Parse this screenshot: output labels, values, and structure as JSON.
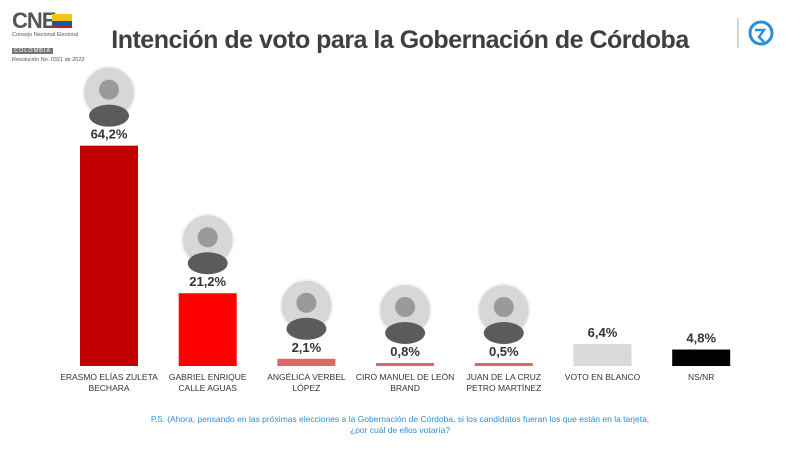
{
  "logo": {
    "mark": "CNE",
    "line1": "Consejo Nacional Electoral",
    "line2": "COLOMBIA",
    "line3": "Resolución No. 0321 de 2023"
  },
  "icons": {
    "corner": "brand-logo-icon",
    "photo": "candidate-photo-icon"
  },
  "chart_data": {
    "type": "bar",
    "title": "Intención de voto para la Gobernación de Córdoba",
    "categories": [
      [
        "ERASMO ELÍAS ZULETA",
        "BECHARA"
      ],
      [
        "GABRIEL ENRIQUE",
        "CALLE AGUAS"
      ],
      [
        "ANGÉLICA VERBEL",
        "LÓPEZ"
      ],
      [
        "CIRO MANUEL DE LEÓN",
        "BRAND"
      ],
      [
        "JUAN DE LA CRUZ",
        "PETRO MARTÍNEZ"
      ],
      [
        "VOTO EN BLANCO"
      ],
      [
        "NS/NR"
      ]
    ],
    "values": [
      64.2,
      21.2,
      2.1,
      0.8,
      0.5,
      6.4,
      4.8
    ],
    "data_labels": [
      "64,2%",
      "21,2%",
      "2,1%",
      "0,8%",
      "0,5%",
      "6,4%",
      "4,8%"
    ],
    "colors": [
      "#c00000",
      "#ff0000",
      "#e06666",
      "#e06666",
      "#e06666",
      "#d9d9d9",
      "#000000"
    ],
    "has_photo": [
      true,
      true,
      true,
      true,
      true,
      false,
      false
    ],
    "ylim": [
      0,
      100
    ],
    "grid": false,
    "legend": "none"
  },
  "footer": {
    "question_line1": "P.5. (Ahora, pensando en las próximas elecciones a la Gobernación de Córdoba, si los candidatos fueran los que están en la tarjeta,",
    "question_line2": "¿por cuál de ellos votaría?"
  }
}
